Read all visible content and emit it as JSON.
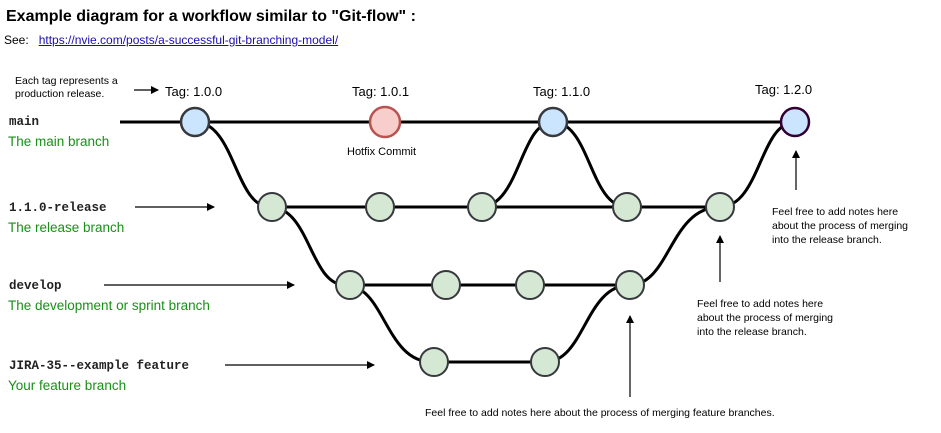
{
  "header": {
    "title": "Example diagram for a workflow similar to \"Git-flow\" :",
    "see_label": "See:",
    "link_text": "https://nvie.com/posts/a-successful-git-branching-model/"
  },
  "tag_note": [
    "Each tag represents a",
    "production release."
  ],
  "tags": [
    "Tag: 1.0.0",
    "Tag: 1.0.1",
    "Tag: 1.1.0",
    "Tag: 1.2.0"
  ],
  "hotfix_label": "Hotfix Commit",
  "branches": [
    {
      "name": "main",
      "desc": "The main branch"
    },
    {
      "name": "1.1.0-release",
      "desc": "The release branch"
    },
    {
      "name": "develop",
      "desc": "The development or sprint branch"
    },
    {
      "name": "JIRA-35--example feature",
      "desc": "Your feature branch"
    }
  ],
  "notes": {
    "top_right": [
      "Feel free to add notes here",
      "about the process of merging",
      "into the release branch."
    ],
    "middle": [
      "Feel free to add notes here",
      "about the process of merging",
      "into the release branch."
    ],
    "bottom": "Feel free to add notes here about the process of merging feature branches."
  },
  "colors": {
    "tag_fill": "#cce5ff",
    "tag_stroke": "#36393d",
    "hotfix_fill": "#f8cecc",
    "hotfix_stroke": "#b85450",
    "commit_fill": "#d5e8d4",
    "commit_stroke": "#82b366",
    "last_tag_stroke": "#330033",
    "branch_desc": "#1a8f1a",
    "line": "#000000"
  }
}
